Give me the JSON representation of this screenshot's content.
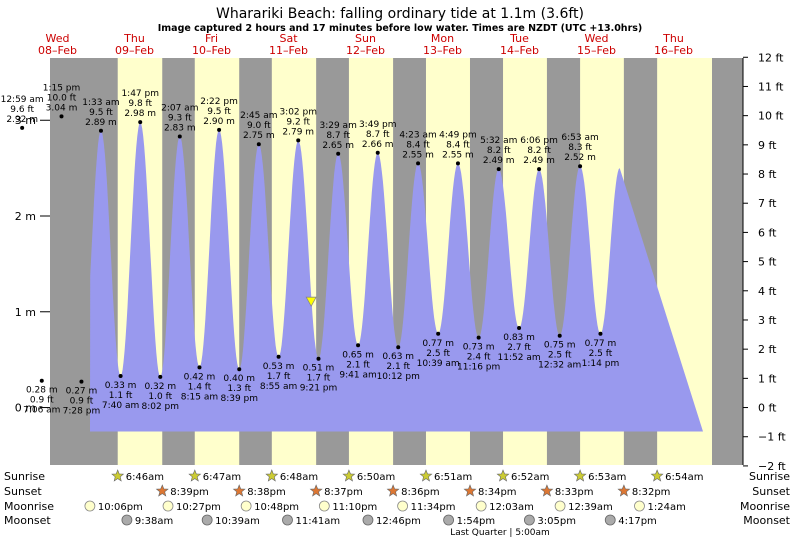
{
  "chart_data": {
    "type": "area",
    "title": "Wharariki Beach: falling  ordinary tide at 1.1m (3.6ft)",
    "subtitle": "Image captured 2 hours and 17 minutes before low water. Times are NZDT (UTC +13.0hrs)",
    "ylabel_left": "",
    "ylabel_right": "",
    "ylim_m": [
      -0.6,
      3.65
    ],
    "left_ticks": [
      "3 m",
      "2 m",
      "1 m",
      "0 m"
    ],
    "left_tick_values": [
      3,
      2,
      1,
      0
    ],
    "right_ticks": [
      "12 ft",
      "11 ft",
      "10 ft",
      "9 ft",
      "8 ft",
      "7 ft",
      "6 ft",
      "5 ft",
      "4 ft",
      "3 ft",
      "2 ft",
      "1 ft",
      "0 ft",
      "−1 ft",
      "−2 ft"
    ],
    "right_tick_values_ft": [
      12,
      11,
      10,
      9,
      8,
      7,
      6,
      5,
      4,
      3,
      2,
      1,
      0,
      -1,
      -2
    ],
    "grid": false,
    "legend": "none",
    "colors": {
      "tide_fill": "#9999ee",
      "night": "#999999",
      "day": "#ffffcc",
      "weekday_label": "#cc0000",
      "current_marker": "#ffff00"
    },
    "days": [
      {
        "weekday": "Wed",
        "date": "08–Feb"
      },
      {
        "weekday": "Thu",
        "date": "09–Feb"
      },
      {
        "weekday": "Fri",
        "date": "10–Feb"
      },
      {
        "weekday": "Sat",
        "date": "11–Feb"
      },
      {
        "weekday": "Sun",
        "date": "12–Feb"
      },
      {
        "weekday": "Mon",
        "date": "13–Feb"
      },
      {
        "weekday": "Tue",
        "date": "14–Feb"
      },
      {
        "weekday": "Wed",
        "date": "15–Feb"
      },
      {
        "weekday": "Thu",
        "date": "16–Feb"
      }
    ],
    "tides": [
      {
        "type": "high",
        "time": "12:59 am",
        "ft": "9.6 ft",
        "m": "2.92 m",
        "value": 2.92
      },
      {
        "type": "low",
        "time": "7:06 am",
        "ft": "0.9 ft",
        "m": "0.28 m",
        "value": 0.28
      },
      {
        "type": "high",
        "time": "1:15 pm",
        "ft": "10.0 ft",
        "m": "3.04 m",
        "value": 3.04
      },
      {
        "type": "low",
        "time": "7:28 pm",
        "ft": "0.9 ft",
        "m": "0.27 m",
        "value": 0.27
      },
      {
        "type": "high",
        "time": "1:33 am",
        "ft": "9.5 ft",
        "m": "2.89 m",
        "value": 2.89
      },
      {
        "type": "low",
        "time": "7:40 am",
        "ft": "1.1 ft",
        "m": "0.33 m",
        "value": 0.33
      },
      {
        "type": "high",
        "time": "1:47 pm",
        "ft": "9.8 ft",
        "m": "2.98 m",
        "value": 2.98
      },
      {
        "type": "low",
        "time": "8:02 pm",
        "ft": "1.0 ft",
        "m": "0.32 m",
        "value": 0.32
      },
      {
        "type": "high",
        "time": "2:07 am",
        "ft": "9.3 ft",
        "m": "2.83 m",
        "value": 2.83
      },
      {
        "type": "low",
        "time": "8:15 am",
        "ft": "1.4 ft",
        "m": "0.42 m",
        "value": 0.42
      },
      {
        "type": "high",
        "time": "2:22 pm",
        "ft": "9.5 ft",
        "m": "2.90 m",
        "value": 2.9
      },
      {
        "type": "low",
        "time": "8:39 pm",
        "ft": "1.3 ft",
        "m": "0.40 m",
        "value": 0.4
      },
      {
        "type": "high",
        "time": "2:45 am",
        "ft": "9.0 ft",
        "m": "2.75 m",
        "value": 2.75
      },
      {
        "type": "low",
        "time": "8:55 am",
        "ft": "1.7 ft",
        "m": "0.53 m",
        "value": 0.53
      },
      {
        "type": "high",
        "time": "3:02 pm",
        "ft": "9.2 ft",
        "m": "2.79 m",
        "value": 2.79
      },
      {
        "type": "low",
        "time": "9:21 pm",
        "ft": "1.7 ft",
        "m": "0.51 m",
        "value": 0.51
      },
      {
        "type": "high",
        "time": "3:29 am",
        "ft": "8.7 ft",
        "m": "2.65 m",
        "value": 2.65
      },
      {
        "type": "low",
        "time": "9:41 am",
        "ft": "2.1 ft",
        "m": "0.65 m",
        "value": 0.65
      },
      {
        "type": "high",
        "time": "3:49 pm",
        "ft": "8.7 ft",
        "m": "2.66 m",
        "value": 2.66
      },
      {
        "type": "low",
        "time": "10:12 pm",
        "ft": "2.1 ft",
        "m": "0.63 m",
        "value": 0.63
      },
      {
        "type": "high",
        "time": "4:23 am",
        "ft": "8.4 ft",
        "m": "2.55 m",
        "value": 2.55
      },
      {
        "type": "low",
        "time": "10:39 am",
        "ft": "2.5 ft",
        "m": "0.77 m",
        "value": 0.77
      },
      {
        "type": "high",
        "time": "4:49 pm",
        "ft": "8.4 ft",
        "m": "2.55 m",
        "value": 2.55
      },
      {
        "type": "low",
        "time": "11:16 pm",
        "ft": "2.4 ft",
        "m": "0.73 m",
        "value": 0.73
      },
      {
        "type": "high",
        "time": "5:32 am",
        "ft": "8.2 ft",
        "m": "2.49 m",
        "value": 2.49
      },
      {
        "type": "low",
        "time": "11:52 am",
        "ft": "2.7 ft",
        "m": "0.83 m",
        "value": 0.83
      },
      {
        "type": "high",
        "time": "6:06 pm",
        "ft": "8.2 ft",
        "m": "2.49 m",
        "value": 2.49
      },
      {
        "type": "low",
        "time": "12:32 am",
        "ft": "2.5 ft",
        "m": "0.75 m",
        "value": 0.75
      },
      {
        "type": "high",
        "time": "6:53 am",
        "ft": "8.3 ft",
        "m": "2.52 m",
        "value": 2.52
      },
      {
        "type": "low",
        "time": "1:14 pm",
        "ft": "2.5 ft",
        "m": "0.77 m",
        "value": 0.77
      }
    ],
    "current_level_m": 1.1,
    "footer_labels": {
      "sunrise": "Sunrise",
      "sunset": "Sunset",
      "moonrise": "Moonrise",
      "moonset": "Moonset"
    },
    "sunrise": [
      "6:46am",
      "6:47am",
      "6:48am",
      "6:50am",
      "6:51am",
      "6:52am",
      "6:53am",
      "6:54am"
    ],
    "sunset": [
      "8:39pm",
      "8:38pm",
      "8:37pm",
      "8:36pm",
      "8:34pm",
      "8:33pm",
      "8:32pm"
    ],
    "moonrise": [
      "10:06pm",
      "10:27pm",
      "10:48pm",
      "11:10pm",
      "11:34pm",
      "12:03am",
      "12:39am",
      "1:24am"
    ],
    "moonset": [
      "9:38am",
      "10:39am",
      "11:41am",
      "12:46pm",
      "1:54pm",
      "3:05pm",
      "4:17pm"
    ],
    "moon_phase": "Last Quarter | 5:00am"
  }
}
